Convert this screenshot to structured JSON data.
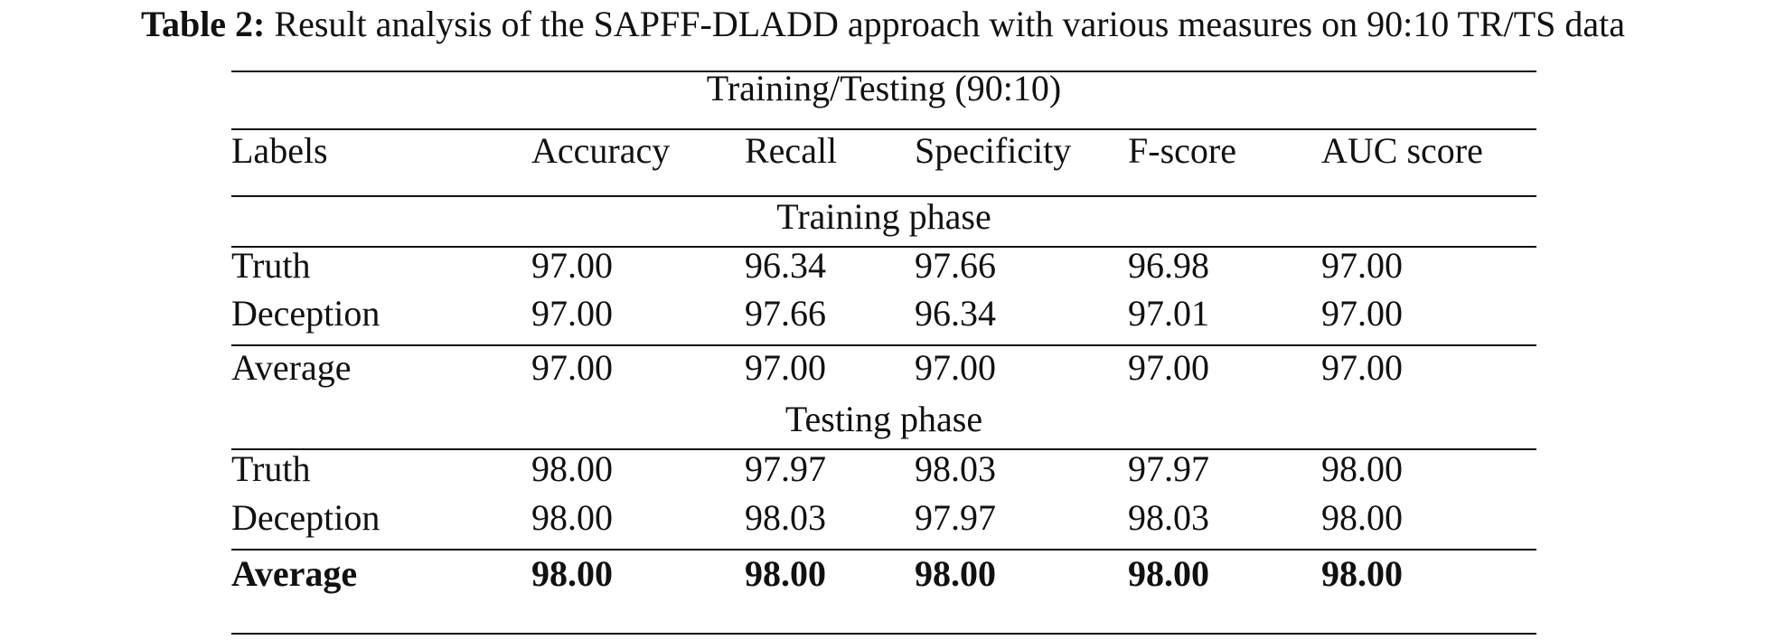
{
  "caption": {
    "label": "Table 2:",
    "text": "Result analysis of the SAPFF-DLADD approach with various measures on 90:10 TR/TS data"
  },
  "table": {
    "group_header": "Training/Testing (90:10)",
    "columns": [
      "Labels",
      "Accuracy",
      "Recall",
      "Specificity",
      "F-score",
      "AUC score"
    ],
    "sections": [
      {
        "title": "Training phase",
        "rows": [
          [
            "Truth",
            "97.00",
            "96.34",
            "97.66",
            "96.98",
            "97.00"
          ],
          [
            "Deception",
            "97.00",
            "97.66",
            "96.34",
            "97.01",
            "97.00"
          ]
        ],
        "average": [
          "Average",
          "97.00",
          "97.00",
          "97.00",
          "97.00",
          "97.00"
        ]
      },
      {
        "title": "Testing phase",
        "rows": [
          [
            "Truth",
            "98.00",
            "97.97",
            "98.03",
            "97.97",
            "98.00"
          ],
          [
            "Deception",
            "98.00",
            "98.03",
            "97.97",
            "98.03",
            "98.00"
          ]
        ],
        "average": [
          "Average",
          "98.00",
          "98.00",
          "98.00",
          "98.00",
          "98.00"
        ]
      }
    ]
  }
}
